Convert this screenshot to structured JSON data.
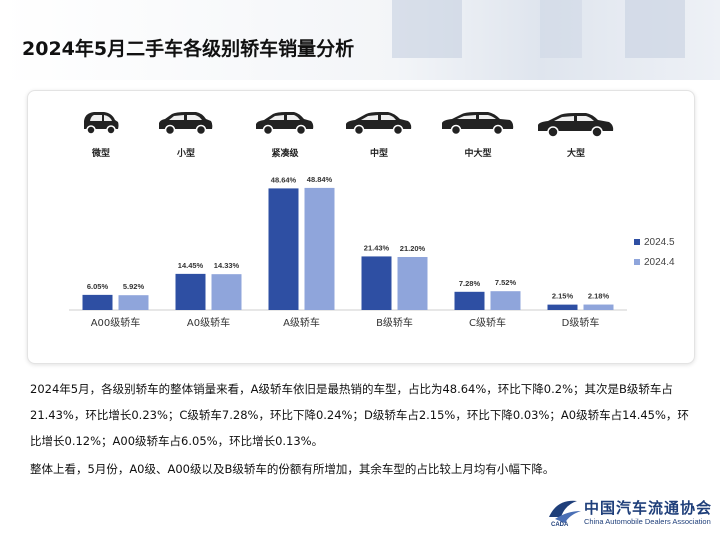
{
  "page_title": "2024年5月二手车各级别轿车销量分析",
  "car_types": [
    {
      "label": "微型",
      "icon": "mini-car-icon"
    },
    {
      "label": "小型",
      "icon": "hatchback-car-icon"
    },
    {
      "label": "紧凑级",
      "icon": "compact-sedan-icon"
    },
    {
      "label": "中型",
      "icon": "midsize-sedan-icon"
    },
    {
      "label": "中大型",
      "icon": "large-sedan-icon"
    },
    {
      "label": "大型",
      "icon": "full-size-sedan-icon"
    }
  ],
  "chart_data": {
    "type": "bar",
    "categories": [
      "A00级轿车",
      "A0级轿车",
      "A级轿车",
      "B级轿车",
      "C级轿车",
      "D级轿车"
    ],
    "series": [
      {
        "name": "2024.5",
        "values": [
          6.05,
          14.45,
          48.64,
          21.43,
          7.28,
          2.15
        ],
        "labels": [
          "6.05%",
          "14.45%",
          "48.64%",
          "21.43%",
          "7.28%",
          "2.15%"
        ],
        "color": "#2e4fa3"
      },
      {
        "name": "2024.4",
        "values": [
          5.92,
          14.33,
          48.84,
          21.2,
          7.52,
          2.18
        ],
        "labels": [
          "5.92%",
          "14.33%",
          "48.84%",
          "21.20%",
          "7.52%",
          "2.18%"
        ],
        "color": "#8fa5db"
      }
    ],
    "ylim": [
      0,
      60
    ],
    "grid": false,
    "legend": "right"
  },
  "summary": [
    "2024年5月，各级别轿车的整体销量来看，A级轿车依旧是最热销的车型，占比为48.64%，环比下降0.2%；其次是B级轿车占21.43%，环比增长0.23%；C级轿车7.28%，环比下降0.24%；D级轿车占2.15%，环比下降0.03%；A0级轿车占14.45%，环比增长0.12%；A00级轿车占6.05%，环比增长0.13%。",
    "整体上看，5月份，A0级、A00级以及B级轿车的份额有所增加，其余车型的占比较上月均有小幅下降。"
  ],
  "logo": {
    "cn": "中国汽车流通协会",
    "en": "China Automobile Dealers Association",
    "mark_text": "CADA",
    "colors": {
      "primary": "#1f3f7a"
    }
  }
}
